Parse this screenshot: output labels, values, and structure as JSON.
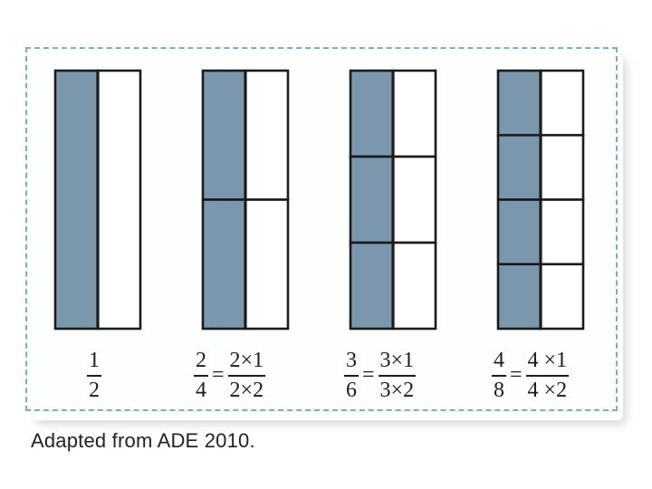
{
  "figure": {
    "caption": "Adapted from ADE 2010.",
    "colors": {
      "shaded": "#7b97ad",
      "unshaded": "#ffffff",
      "line": "#1b1b1b",
      "frame_border": "#7bb2b0"
    },
    "models": [
      {
        "rows": 1,
        "shaded_parts": 1,
        "total_parts": 2,
        "label": {
          "num": "1",
          "den": "2"
        }
      },
      {
        "rows": 2,
        "shaded_parts": 2,
        "total_parts": 4,
        "label": {
          "num": "2",
          "den": "4",
          "equals": "=",
          "expr_num": "2×1",
          "expr_den": "2×2"
        }
      },
      {
        "rows": 3,
        "shaded_parts": 3,
        "total_parts": 6,
        "label": {
          "num": "3",
          "den": "6",
          "equals": "=",
          "expr_num": "3×1",
          "expr_den": "3×2"
        }
      },
      {
        "rows": 4,
        "shaded_parts": 4,
        "total_parts": 8,
        "label": {
          "num": "4",
          "den": "8",
          "equals": "=",
          "expr_num": "4 ×1",
          "expr_den": "4 ×2"
        }
      }
    ]
  }
}
